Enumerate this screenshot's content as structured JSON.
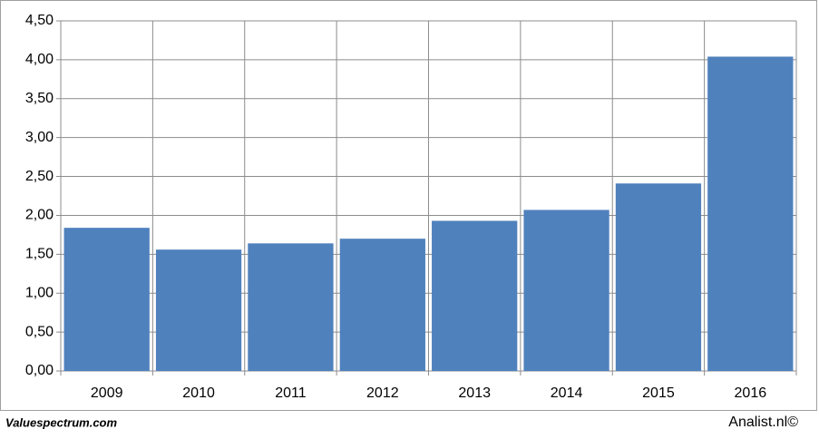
{
  "chart_data": {
    "type": "bar",
    "categories": [
      "2009",
      "2010",
      "2011",
      "2012",
      "2013",
      "2014",
      "2015",
      "2016"
    ],
    "values": [
      1.84,
      1.56,
      1.64,
      1.7,
      1.93,
      2.07,
      2.41,
      4.04
    ],
    "color": "#4f81bd",
    "ylim": [
      0,
      4.5
    ],
    "yticks": [
      {
        "value": 0,
        "label": "0,00"
      },
      {
        "value": 0.5,
        "label": "0,50"
      },
      {
        "value": 1,
        "label": "1,00"
      },
      {
        "value": 1.5,
        "label": "1,50"
      },
      {
        "value": 2,
        "label": "2,00"
      },
      {
        "value": 2.5,
        "label": "2,50"
      },
      {
        "value": 3,
        "label": "3,00"
      },
      {
        "value": 3.5,
        "label": "3,50"
      },
      {
        "value": 4,
        "label": "4,00"
      },
      {
        "value": 4.5,
        "label": "4,50"
      }
    ],
    "grid": true,
    "annotations": [
      "Valuespectrum.com",
      "Analist.nl©"
    ]
  }
}
